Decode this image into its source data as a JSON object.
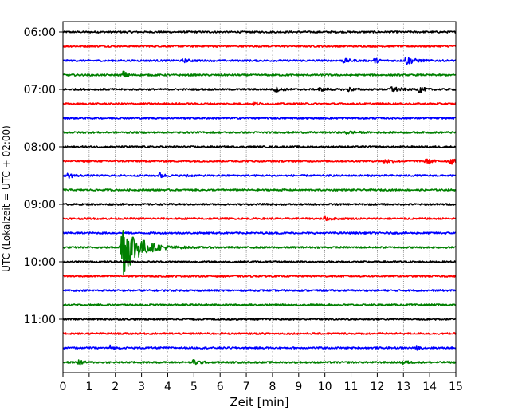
{
  "chart_data": {
    "type": "line",
    "title": "",
    "xlabel": "Zeit  [min]",
    "ylabel": "UTC (Lokalzeit = UTC + 02:00)",
    "xlim": [
      0,
      15
    ],
    "x_ticks": [
      0,
      1,
      2,
      3,
      4,
      5,
      6,
      7,
      8,
      9,
      10,
      11,
      12,
      13,
      14,
      15
    ],
    "y_tick_labels": [
      "06:00",
      "07:00",
      "08:00",
      "09:00",
      "10:00",
      "11:00"
    ],
    "grid": "vertical-dotted",
    "trace_interval_min": 15,
    "color_cycle": [
      "#000000",
      "#ff0000",
      "#0000ff",
      "#008000"
    ],
    "traces": [
      {
        "start": "06:00",
        "bursts": []
      },
      {
        "start": "06:15",
        "bursts": []
      },
      {
        "start": "06:30",
        "bursts": [
          {
            "t": 4.6,
            "amp": 0.2,
            "dur": 0.5
          },
          {
            "t": 10.7,
            "amp": 0.3,
            "dur": 0.5
          },
          {
            "t": 11.9,
            "amp": 0.35,
            "dur": 0.3
          },
          {
            "t": 13.1,
            "amp": 0.6,
            "dur": 0.6
          }
        ]
      },
      {
        "start": "06:45",
        "bursts": [
          {
            "t": 2.3,
            "amp": 0.55,
            "dur": 0.3
          }
        ]
      },
      {
        "start": "07:00",
        "bursts": [
          {
            "t": 8.1,
            "amp": 0.3,
            "dur": 0.5
          },
          {
            "t": 9.8,
            "amp": 0.2,
            "dur": 0.6
          },
          {
            "t": 10.9,
            "amp": 0.25,
            "dur": 0.4
          },
          {
            "t": 12.5,
            "amp": 0.45,
            "dur": 0.6
          },
          {
            "t": 13.6,
            "amp": 0.55,
            "dur": 0.3
          }
        ]
      },
      {
        "start": "07:15",
        "bursts": [
          {
            "t": 7.3,
            "amp": 0.2,
            "dur": 0.4
          }
        ]
      },
      {
        "start": "07:30",
        "bursts": []
      },
      {
        "start": "07:45",
        "bursts": [
          {
            "t": 10.8,
            "amp": 0.2,
            "dur": 0.6
          }
        ]
      },
      {
        "start": "08:00",
        "bursts": []
      },
      {
        "start": "08:15",
        "bursts": [
          {
            "t": 12.3,
            "amp": 0.3,
            "dur": 0.5
          },
          {
            "t": 13.8,
            "amp": 0.3,
            "dur": 0.6
          },
          {
            "t": 14.8,
            "amp": 0.45,
            "dur": 0.3
          }
        ]
      },
      {
        "start": "08:30",
        "bursts": [
          {
            "t": 0.2,
            "amp": 0.35,
            "dur": 0.4
          },
          {
            "t": 3.7,
            "amp": 0.4,
            "dur": 0.3
          },
          {
            "t": 4.7,
            "amp": 0.25,
            "dur": 0.2
          }
        ]
      },
      {
        "start": "08:45",
        "bursts": []
      },
      {
        "start": "09:00",
        "bursts": []
      },
      {
        "start": "09:15",
        "bursts": [
          {
            "t": 10.0,
            "amp": 0.2,
            "dur": 0.6
          }
        ]
      },
      {
        "start": "09:30",
        "bursts": []
      },
      {
        "start": "09:45",
        "bursts": [
          {
            "t": 2.2,
            "amp": 4.8,
            "dur": 1.2
          }
        ]
      },
      {
        "start": "10:00",
        "bursts": []
      },
      {
        "start": "10:15",
        "bursts": []
      },
      {
        "start": "10:30",
        "bursts": []
      },
      {
        "start": "10:45",
        "bursts": []
      },
      {
        "start": "11:00",
        "bursts": []
      },
      {
        "start": "11:15",
        "bursts": []
      },
      {
        "start": "11:30",
        "bursts": [
          {
            "t": 1.8,
            "amp": 0.3,
            "dur": 0.2
          },
          {
            "t": 13.5,
            "amp": 0.25,
            "dur": 0.3
          }
        ]
      },
      {
        "start": "11:45",
        "bursts": [
          {
            "t": 0.6,
            "amp": 0.35,
            "dur": 0.3
          },
          {
            "t": 5.0,
            "amp": 0.4,
            "dur": 0.4
          },
          {
            "t": 13.0,
            "amp": 0.25,
            "dur": 0.4
          }
        ]
      }
    ]
  }
}
